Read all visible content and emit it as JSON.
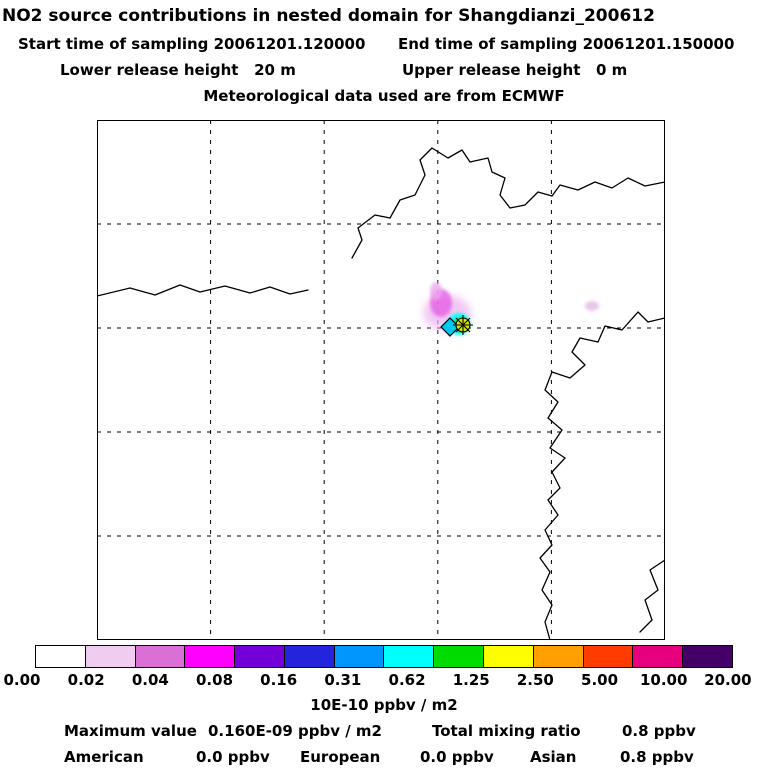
{
  "header": {
    "title": "NO2 source contributions in nested domain for Shangdianzi_200612",
    "start_time": "Start time of sampling 20061201.120000",
    "end_time": "End time of sampling 20061201.150000",
    "lower_release": "Lower release height   20 m",
    "upper_release": "Upper release height   0 m",
    "met_data": "Meteorological data used are from ECMWF"
  },
  "colorbar": {
    "colors": [
      "#ffffff",
      "#f0ccf0",
      "#da70d6",
      "#ff00ff",
      "#7300d8",
      "#2424dc",
      "#0096ff",
      "#00ffff",
      "#00dc00",
      "#ffff00",
      "#ffa000",
      "#ff3c00",
      "#e6007d",
      "#440066"
    ],
    "labels": [
      "0.00",
      "0.02",
      "0.04",
      "0.08",
      "0.16",
      "0.31",
      "0.62",
      "1.25",
      "2.50",
      "5.00",
      "10.00",
      "20.00"
    ],
    "units": "10E-10 ppbv / m2"
  },
  "footer": {
    "max_label": "Maximum value",
    "max_value": "0.160E-09 ppbv / m2",
    "mixing_label": "Total mixing ratio",
    "mixing_value": "0.8 ppbv",
    "regions": [
      {
        "name": "American",
        "value": "0.0 ppbv"
      },
      {
        "name": "European",
        "value": "0.0 ppbv"
      },
      {
        "name": "Asian",
        "value": "0.8 ppbv"
      }
    ]
  },
  "chart_data": {
    "type": "heatmap",
    "title": "NO2 source contributions in nested domain for Shangdianzi_200612",
    "station": "Shangdianzi_200612",
    "sampling": {
      "start": "20061201.120000",
      "end": "20061201.150000"
    },
    "release_heights_m": {
      "lower": 20,
      "upper": 0
    },
    "meteorology": "ECMWF",
    "colorbar_levels": [
      0.0,
      0.02,
      0.04,
      0.08,
      0.16,
      0.31,
      0.62,
      1.25,
      2.5,
      5.0,
      10.0,
      20.0
    ],
    "colorbar_units": "10E-10 ppbv / m2",
    "maximum_value": "0.160E-09 ppbv / m2",
    "total_mixing_ratio_ppbv": 0.8,
    "contributions_ppbv": {
      "American": 0.0,
      "European": 0.0,
      "Asian": 0.8
    },
    "grid": {
      "rows": 5,
      "cols": 5,
      "style": "dashed"
    },
    "plume_note": "small concentration plume with cyan/green/yellow core at station marker near map center; faint magenta smudge extending NW and a faint patch to the east"
  }
}
